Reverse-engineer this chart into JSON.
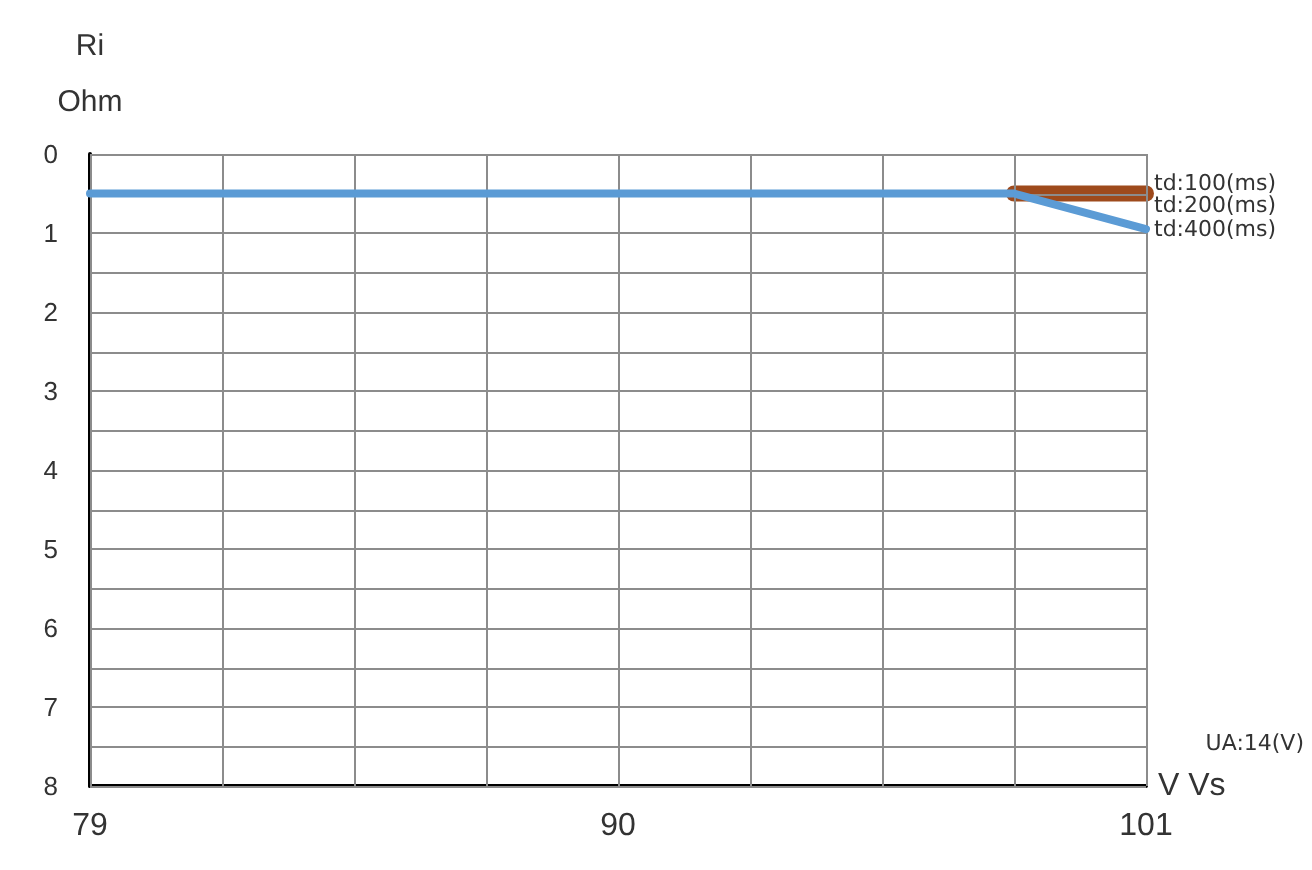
{
  "chart_data": {
    "type": "line",
    "xlabel": "V Vs",
    "ylabel": "Ri\nOhm",
    "annotations": [
      "UA:14(V)"
    ],
    "x": [
      79,
      98.25,
      101
    ],
    "series": [
      {
        "name": "td:100(ms)",
        "color": "#9e4a1c",
        "values": [
          null,
          0.5,
          0.5
        ]
      },
      {
        "name": "td:200(ms)",
        "values": [
          null,
          null,
          null
        ]
      },
      {
        "name": "td:400(ms)",
        "color": "#5b9bd5",
        "values": [
          0.5,
          0.5,
          0.95
        ]
      }
    ],
    "xlim": [
      79,
      101
    ],
    "xticks": [
      79,
      {
        "value": 81.75,
        "label": null
      },
      {
        "value": 84.5,
        "label": null
      },
      {
        "value": 87.25,
        "label": null
      },
      90,
      {
        "value": 92.75,
        "label": null
      },
      {
        "value": 95.5,
        "label": null
      },
      {
        "value": 98.25,
        "label": null
      },
      101
    ],
    "ylim": [
      8,
      0
    ],
    "yticks": [
      0,
      {
        "value": 0.5,
        "label": null
      },
      1,
      {
        "value": 1.5,
        "label": null
      },
      2,
      {
        "value": 2.5,
        "label": null
      },
      3,
      {
        "value": 3.5,
        "label": null
      },
      4,
      {
        "value": 4.5,
        "label": null
      },
      5,
      {
        "value": 5.5,
        "label": null
      },
      6,
      {
        "value": 6.5,
        "label": null
      },
      7,
      {
        "value": 7.5,
        "label": null
      },
      8
    ],
    "grid": true,
    "legend": false,
    "marker": "none",
    "line_style": "solid"
  }
}
